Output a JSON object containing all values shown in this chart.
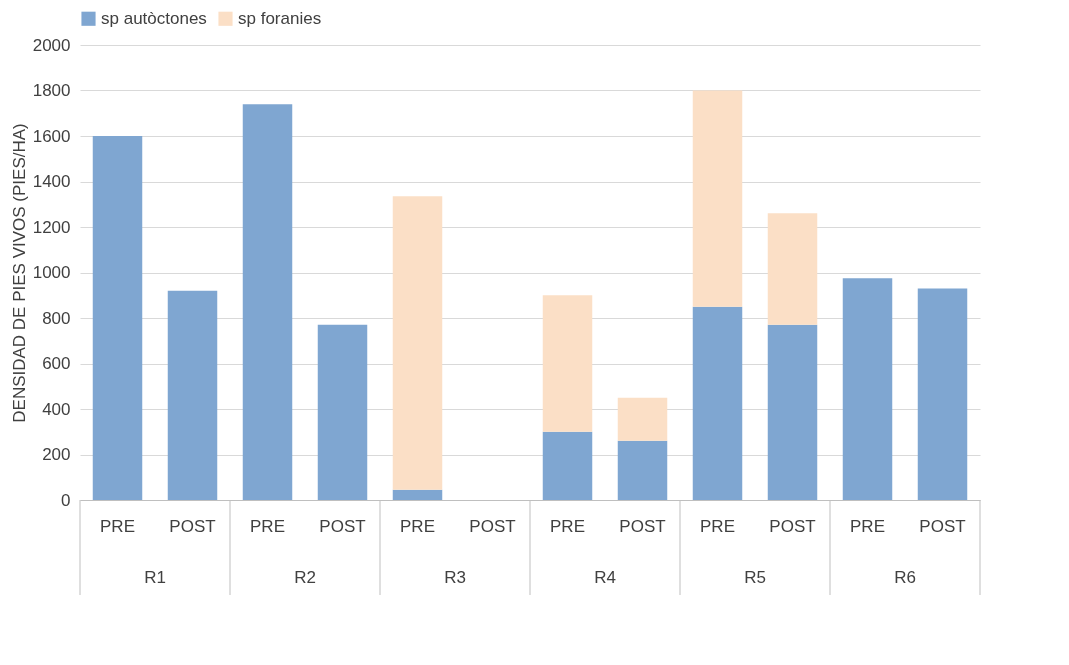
{
  "chart_data": {
    "type": "bar",
    "stacked": true,
    "ylabel": "DENSIDAD DE PIES VIVOS (PIES/HA)",
    "categories": [
      "PRE",
      "POST",
      "PRE",
      "POST",
      "PRE",
      "POST",
      "PRE",
      "POST",
      "PRE",
      "POST",
      "PRE",
      "POST"
    ],
    "series": [
      {
        "name": "sp autòctones",
        "color": "#7fa6d1",
        "values": [
          1600,
          920,
          1740,
          770,
          45,
          0,
          300,
          260,
          850,
          770,
          975,
          930
        ]
      },
      {
        "name": "sp foranies",
        "color": "#fbdfc6",
        "values": [
          0,
          0,
          0,
          0,
          1290,
          0,
          600,
          190,
          950,
          490,
          0,
          0
        ]
      }
    ],
    "annotations": [
      "R1",
      "R2",
      "R3",
      "R4",
      "R5",
      "R6"
    ],
    "ylim": [
      0,
      2000
    ],
    "yticks": [
      0,
      200,
      400,
      600,
      800,
      1000,
      1200,
      1400,
      1600,
      1800,
      2000
    ],
    "grid": "y",
    "legend": "top"
  }
}
